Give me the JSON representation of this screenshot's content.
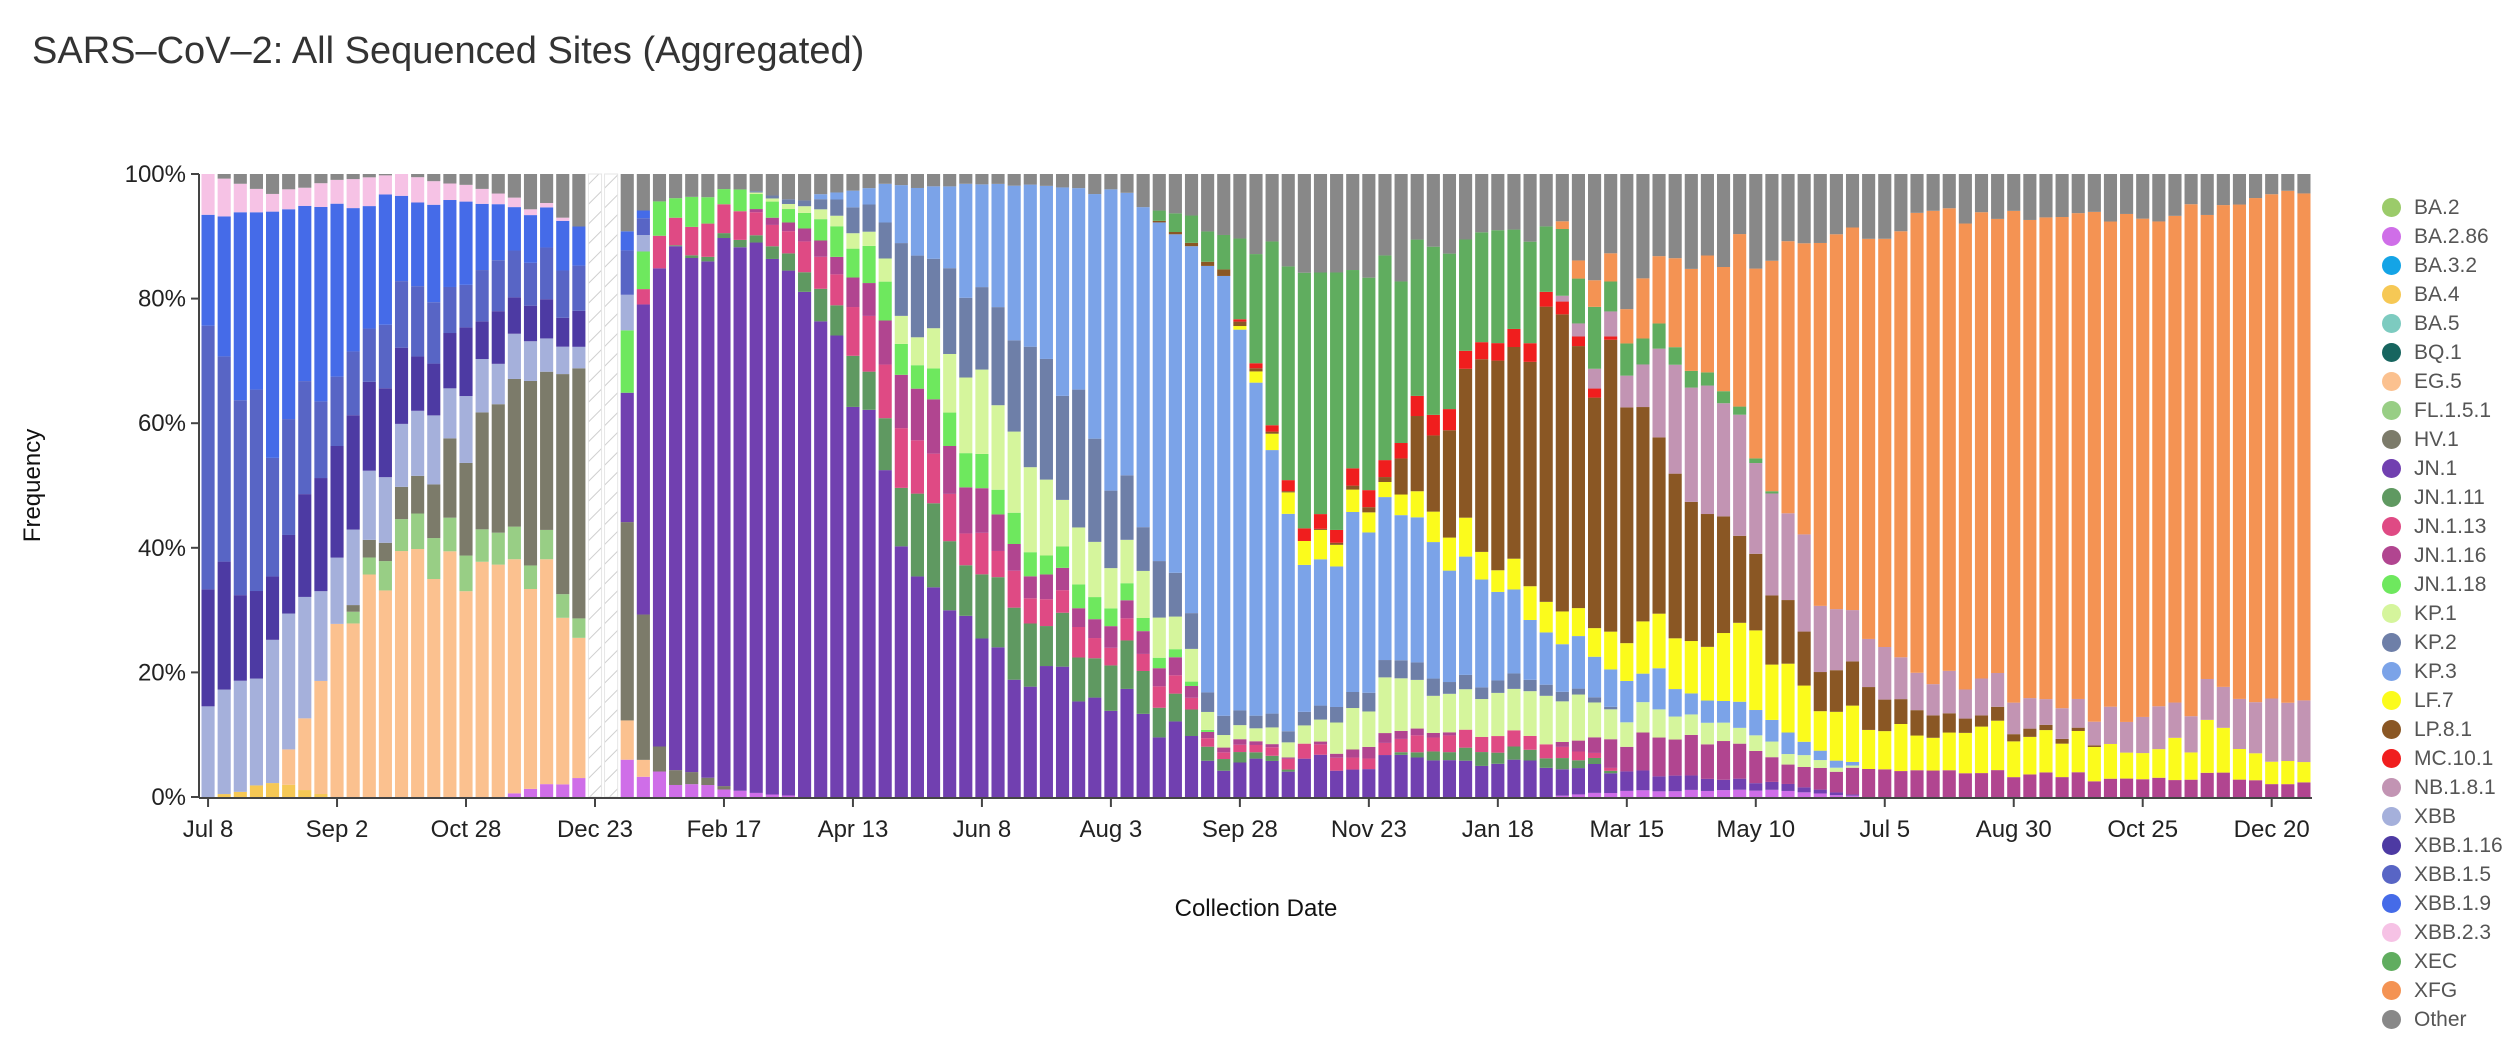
{
  "chart_data": {
    "type": "bar",
    "stacked": true,
    "normalized": true,
    "title": "SARS–CoV–2: All Sequenced Sites (Aggregated)",
    "xlabel": "Collection Date",
    "ylabel": "Frequency",
    "yticks": [
      "0%",
      "20%",
      "40%",
      "60%",
      "80%",
      "100%"
    ],
    "ylim": [
      0,
      100
    ],
    "xticks": [
      "Jul 8",
      "Sep 2",
      "Oct 28",
      "Dec 23",
      "Feb 17",
      "Apr 13",
      "Jun 8",
      "Aug 3",
      "Sep 28",
      "Nov 23",
      "Jan 18",
      "Mar 15",
      "May 10",
      "Jul 5",
      "Aug 30",
      "Oct 25",
      "Dec 20"
    ],
    "weeks_per_xtick": 8,
    "total_weeks": 131,
    "no_data_weeks": [
      24,
      25
    ],
    "legend_position": "right",
    "variants": [
      {
        "name": "BA.2",
        "color": "#9bcb6a"
      },
      {
        "name": "BA.2.86",
        "color": "#cf6ee8"
      },
      {
        "name": "BA.3.2",
        "color": "#14a4e6"
      },
      {
        "name": "BA.4",
        "color": "#f6c855"
      },
      {
        "name": "BA.5",
        "color": "#7dcbc0"
      },
      {
        "name": "BQ.1",
        "color": "#17655f"
      },
      {
        "name": "EG.5",
        "color": "#fbc18f"
      },
      {
        "name": "FL.1.5.1",
        "color": "#98ce85"
      },
      {
        "name": "HV.1",
        "color": "#7c7b6a"
      },
      {
        "name": "JN.1",
        "color": "#7140b0"
      },
      {
        "name": "JN.1.11",
        "color": "#5f9961"
      },
      {
        "name": "JN.1.13",
        "color": "#df4a84"
      },
      {
        "name": "JN.1.16",
        "color": "#b14590"
      },
      {
        "name": "JN.1.18",
        "color": "#6ee85e"
      },
      {
        "name": "KP.1",
        "color": "#d5f59c"
      },
      {
        "name": "KP.2",
        "color": "#6e7fa8"
      },
      {
        "name": "KP.3",
        "color": "#7ba3e8"
      },
      {
        "name": "LF.7",
        "color": "#fbfb1c"
      },
      {
        "name": "LP.8.1",
        "color": "#8a5724"
      },
      {
        "name": "MC.10.1",
        "color": "#f01e1e"
      },
      {
        "name": "NB.1.8.1",
        "color": "#c294b3"
      },
      {
        "name": "XBB",
        "color": "#a5b0db"
      },
      {
        "name": "XBB.1.16",
        "color": "#4d3aa3"
      },
      {
        "name": "XBB.1.5",
        "color": "#5865c5"
      },
      {
        "name": "XBB.1.9",
        "color": "#456be8"
      },
      {
        "name": "XBB.2.3",
        "color": "#f6c2e5"
      },
      {
        "name": "XEC",
        "color": "#60ad5f"
      },
      {
        "name": "XFG",
        "color": "#f49353"
      },
      {
        "name": "Other",
        "color": "#888888"
      }
    ],
    "series_keyframes": [
      {
        "week": 0,
        "values": {
          "XBB": 13,
          "XBB.1.16": 20,
          "XBB.1.5": 42,
          "XBB.1.9": 18,
          "XBB.2.3": 7
        }
      },
      {
        "week": 4,
        "values": {
          "BA.4": 2,
          "XBB": 22,
          "XBB.1.16": 12,
          "XBB.1.5": 20,
          "XBB.1.9": 38,
          "XBB.2.3": 3,
          "Other": 3
        }
      },
      {
        "week": 8,
        "values": {
          "EG.5": 25,
          "XBB": 10,
          "XBB.1.16": 20,
          "XBB.1.5": 10,
          "XBB.1.9": 30,
          "XBB.2.3": 4,
          "Other": 1
        }
      },
      {
        "week": 12,
        "values": {
          "EG.5": 35,
          "FL.1.5.1": 6,
          "HV.1": 5,
          "XBB": 12,
          "XBB.1.16": 12,
          "XBB.1.5": 10,
          "XBB.1.9": 16,
          "XBB.2.3": 4
        }
      },
      {
        "week": 18,
        "values": {
          "EG.5": 37,
          "FL.1.5.1": 5,
          "HV.1": 20,
          "XBB": 8,
          "XBB.1.16": 8,
          "XBB.1.5": 8,
          "XBB.1.9": 9,
          "XBB.2.3": 2,
          "Other": 3
        }
      },
      {
        "week": 23,
        "values": {
          "BA.2.86": 3,
          "EG.5": 27,
          "FL.1.5.1": 4,
          "HV.1": 35,
          "XBB": 4,
          "XBB.1.16": 5,
          "XBB.1.5": 8,
          "XBB.1.9": 6,
          "Other": 8
        }
      },
      {
        "week": 26,
        "values": {
          "BA.2.86": 5,
          "EG.5": 5,
          "HV.1": 38,
          "JN.1": 20,
          "JN.1.18": 10,
          "XBB": 5,
          "XBB.1.5": 6,
          "XBB.1.9": 3,
          "Other": 8
        }
      },
      {
        "week": 28,
        "values": {
          "BA.2.86": 3,
          "HV.1": 3,
          "JN.1": 80,
          "JN.1.13": 5,
          "JN.1.18": 5,
          "Other": 4
        }
      },
      {
        "week": 33,
        "values": {
          "BA.2.86": 1,
          "JN.1": 88,
          "JN.1.11": 1,
          "JN.1.13": 4,
          "JN.1.18": 3,
          "Other": 3
        }
      },
      {
        "week": 37,
        "values": {
          "JN.1": 82,
          "JN.1.11": 3,
          "JN.1.13": 4,
          "JN.1.16": 2,
          "JN.1.18": 3,
          "KP.1": 1,
          "KP.2": 1,
          "Other": 4
        }
      },
      {
        "week": 41,
        "values": {
          "JN.1": 60,
          "JN.1.11": 8,
          "JN.1.13": 8,
          "JN.1.16": 5,
          "JN.1.18": 6,
          "KP.1": 3,
          "KP.2": 5,
          "KP.3": 3,
          "Other": 2
        }
      },
      {
        "week": 44,
        "values": {
          "JN.1": 32,
          "JN.1.11": 12,
          "JN.1.13": 8,
          "JN.1.16": 10,
          "JN.1.18": 5,
          "KP.1": 6,
          "KP.2": 12,
          "KP.3": 13,
          "Other": 2
        }
      },
      {
        "week": 49,
        "values": {
          "JN.1": 22,
          "JN.1.11": 10,
          "JN.1.13": 5,
          "JN.1.16": 5,
          "JN.1.18": 5,
          "KP.1": 15,
          "KP.2": 15,
          "KP.3": 21,
          "Other": 2
        }
      },
      {
        "week": 54,
        "values": {
          "JN.1": 17,
          "JN.1.11": 7,
          "JN.1.13": 4,
          "JN.1.16": 3,
          "JN.1.18": 3,
          "KP.1": 8,
          "KP.2": 22,
          "KP.3": 34,
          "Other": 2
        }
      },
      {
        "week": 58,
        "values": {
          "JN.1": 12,
          "JN.1.11": 6,
          "JN.1.13": 3,
          "JN.1.16": 3,
          "JN.1.18": 2,
          "KP.1": 8,
          "KP.2": 8,
          "KP.3": 54,
          "Other": 4
        }
      },
      {
        "week": 63,
        "values": {
          "JN.1": 6,
          "JN.1.11": 2,
          "JN.1.13": 1,
          "JN.1.16": 1,
          "KP.1": 2,
          "KP.2": 3,
          "KP.3": 67,
          "LP.8.1": 1,
          "XEC": 7,
          "Other": 10
        }
      },
      {
        "week": 68,
        "values": {
          "JN.1": 5,
          "JN.1.13": 2,
          "KP.1": 3,
          "KP.2": 2,
          "KP.3": 28,
          "LF.7": 4,
          "MC.10.1": 2,
          "XEC": 40,
          "Other": 14
        }
      },
      {
        "week": 73,
        "values": {
          "JN.1": 6,
          "JN.1.13": 2,
          "JN.1.16": 2,
          "KP.1": 8,
          "KP.2": 3,
          "KP.3": 24,
          "LF.7": 3,
          "LP.8.1": 1,
          "MC.10.1": 3,
          "XEC": 32,
          "Other": 16
        }
      },
      {
        "week": 78,
        "values": {
          "JN.1": 6,
          "JN.1.11": 2,
          "JN.1.13": 3,
          "KP.1": 6,
          "KP.2": 2,
          "KP.3": 18,
          "LF.7": 5,
          "LP.8.1": 25,
          "MC.10.1": 3,
          "XEC": 20,
          "Other": 10
        }
      },
      {
        "week": 83,
        "values": {
          "JN.1": 5,
          "JN.1.11": 2,
          "JN.1.13": 2,
          "KP.1": 8,
          "KP.2": 2,
          "KP.3": 8,
          "LF.7": 5,
          "LP.8.1": 45,
          "MC.10.1": 3,
          "XEC": 12,
          "Other": 8
        }
      },
      {
        "week": 88,
        "values": {
          "BA.2.86": 1,
          "JN.1": 3,
          "JN.1.16": 5,
          "KP.1": 4,
          "KP.3": 6,
          "LF.7": 6,
          "LP.8.1": 40,
          "NB.1.8.1": 5,
          "XEC": 5,
          "XFG": 7,
          "Other": 18
        }
      },
      {
        "week": 93,
        "values": {
          "BA.2.86": 1,
          "JN.1": 2,
          "JN.1.16": 6,
          "KP.1": 4,
          "KP.3": 4,
          "LF.7": 12,
          "LP.8.1": 20,
          "NB.1.8.1": 20,
          "XEC": 2,
          "XFG": 17,
          "Other": 12
        }
      },
      {
        "week": 98,
        "values": {
          "BA.2.86": 1,
          "JN.1": 1,
          "JN.1.16": 3,
          "KP.1": 2,
          "KP.3": 3,
          "LF.7": 10,
          "LP.8.1": 10,
          "NB.1.8.1": 14,
          "XFG": 44,
          "Other": 12
        }
      },
      {
        "week": 103,
        "values": {
          "JN.1.16": 5,
          "LF.7": 7,
          "LP.8.1": 5,
          "NB.1.8.1": 8,
          "XFG": 66,
          "Other": 9
        }
      },
      {
        "week": 110,
        "values": {
          "JN.1.16": 4,
          "LF.7": 7,
          "LP.8.1": 2,
          "NB.1.8.1": 6,
          "XFG": 74,
          "Other": 7
        }
      },
      {
        "week": 118,
        "values": {
          "JN.1.16": 3,
          "LF.7": 5,
          "NB.1.8.1": 5,
          "XFG": 80,
          "Other": 7
        }
      },
      {
        "week": 125,
        "values": {
          "JN.1.16": 3,
          "LF.7": 6,
          "NB.1.8.1": 6,
          "XFG": 80,
          "Other": 5
        }
      },
      {
        "week": 130,
        "values": {
          "JN.1.16": 2,
          "LF.7": 3,
          "NB.1.8.1": 12,
          "XFG": 80,
          "Other": 3
        }
      }
    ]
  }
}
